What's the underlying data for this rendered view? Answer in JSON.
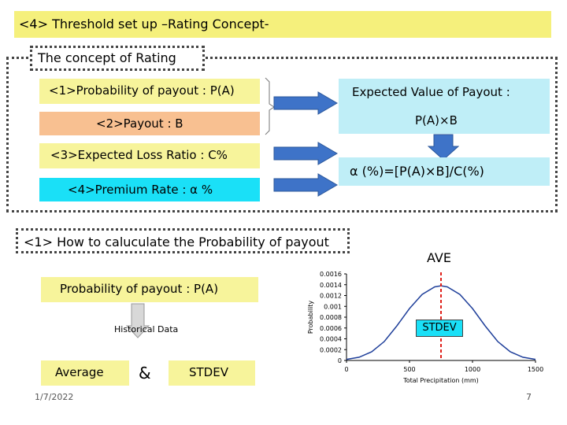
{
  "header": {
    "title": "<4> Threshold set up –Rating Concept-"
  },
  "concept": {
    "tab_label": "The concept of Rating",
    "item1": "<1>Probability of payout : P(A)",
    "item2": "<2>Payout : B",
    "item3": "<3>Expected Loss Ratio : C%",
    "item4": "<4>Premium Rate : α %",
    "expected_label": "Expected Value of Payout :",
    "expected_formula": "P(A)×B",
    "alpha_formula": "α (%)=[P(A)×B]/C(%)"
  },
  "section": {
    "title": "<1> How to caluculate the Probability of payout",
    "prob_label": "Probability of payout : P(A)",
    "historical": "Historical Data",
    "average": "Average",
    "amp": "&",
    "stdev": "STDEV"
  },
  "chart": {
    "ave_label": "AVE",
    "stdev_label": "STDEV"
  },
  "chart_data": {
    "type": "line",
    "title": "",
    "xlabel": "Total Precipitation (mm)",
    "ylabel": "Probability",
    "xlim": [
      0,
      1500
    ],
    "ylim": [
      0,
      0.0016
    ],
    "x_ticks": [
      "0",
      "500",
      "1000",
      "1500"
    ],
    "y_ticks": [
      "0",
      "0.0002",
      "0.0004",
      "0.0006",
      "0.0008",
      "0.001",
      "0.0012",
      "0.0014",
      "0.0016"
    ],
    "series": [
      {
        "x": [
          0,
          100,
          200,
          300,
          400,
          500,
          600,
          700,
          750,
          800,
          900,
          1000,
          1100,
          1200,
          1300,
          1400,
          1500
        ],
        "values": [
          2e-05,
          6e-05,
          0.00016,
          0.00035,
          0.00064,
          0.00096,
          0.00122,
          0.00136,
          0.00138,
          0.00136,
          0.00122,
          0.00096,
          0.00064,
          0.00035,
          0.00016,
          6e-05,
          2e-05
        ]
      }
    ],
    "mean_line_x": 750,
    "colors": {
      "curve": "#1f3f9a",
      "mean": "#e0201a"
    }
  },
  "footer": {
    "date": "1/7/2022",
    "page": "7"
  }
}
